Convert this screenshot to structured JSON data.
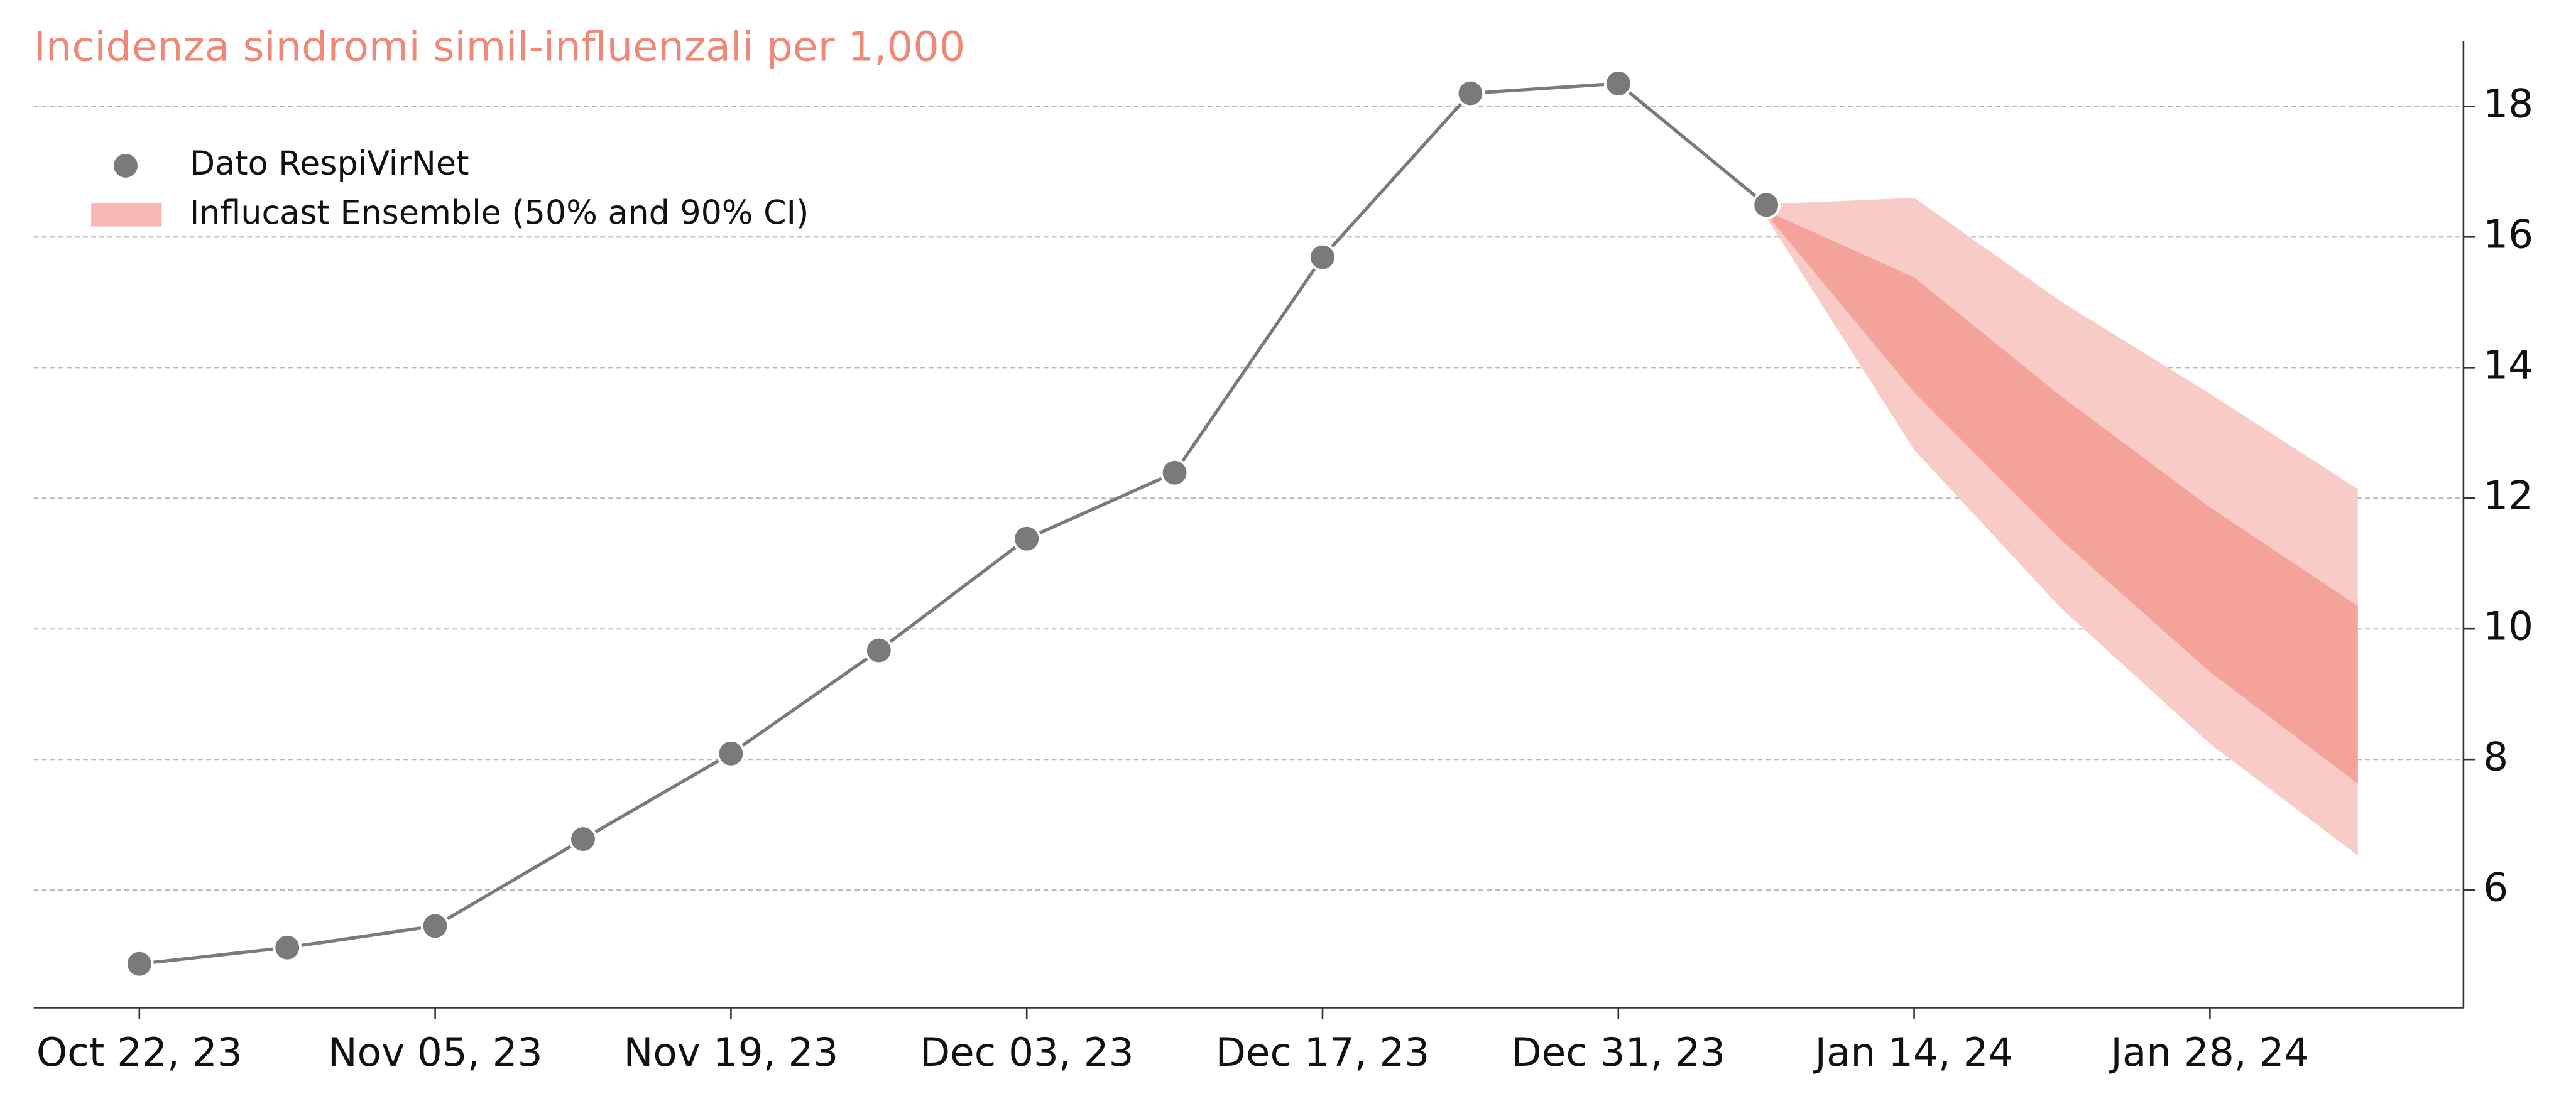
{
  "chart_data": {
    "type": "line",
    "title": "Incidenza sindromi simil-influenzali per 1,000",
    "xlim": [
      "2023-10-17",
      "2024-02-09"
    ],
    "xticks": [
      {
        "value": "2023-10-22",
        "label": "Oct 22, 23"
      },
      {
        "value": "2023-11-05",
        "label": "Nov 05, 23"
      },
      {
        "value": "2023-11-19",
        "label": "Nov 19, 23"
      },
      {
        "value": "2023-12-03",
        "label": "Dec 03, 23"
      },
      {
        "value": "2023-12-17",
        "label": "Dec 17, 23"
      },
      {
        "value": "2023-12-31",
        "label": "Dec 31, 23"
      },
      {
        "value": "2024-01-14",
        "label": "Jan 14, 24"
      },
      {
        "value": "2024-01-28",
        "label": "Jan 28, 24"
      }
    ],
    "ylim": [
      4.2,
      19.0
    ],
    "yticks": [
      6,
      8,
      10,
      12,
      14,
      16,
      18
    ],
    "grid": true,
    "legend": "upper-left",
    "series": [
      {
        "name": "Dato RespiVirNet",
        "color": "#7a7a7a",
        "x": [
          "2023-10-22",
          "2023-10-29",
          "2023-11-05",
          "2023-11-12",
          "2023-11-19",
          "2023-11-26",
          "2023-12-03",
          "2023-12-10",
          "2023-12-17",
          "2023-12-24",
          "2023-12-31",
          "2024-01-07"
        ],
        "values": [
          4.87,
          5.12,
          5.45,
          6.78,
          8.09,
          9.67,
          11.38,
          12.39,
          15.69,
          18.2,
          18.35,
          16.49
        ]
      }
    ],
    "bands": {
      "name": "Influcast Ensemble (50% and 90% CI)",
      "color": "#f7b8b1",
      "color_90": "#f9cbc7",
      "color_50": "#f4a39b",
      "x": [
        "2024-01-07",
        "2024-01-14",
        "2024-01-21",
        "2024-01-28",
        "2024-02-04"
      ],
      "lower_90": [
        16.3,
        12.74,
        10.3,
        8.24,
        6.53
      ],
      "upper_90": [
        16.5,
        16.6,
        15.0,
        13.6,
        12.14
      ],
      "lower_50": [
        16.35,
        13.62,
        11.35,
        9.34,
        7.63
      ],
      "upper_50": [
        16.4,
        15.38,
        13.55,
        11.86,
        10.35
      ]
    }
  }
}
